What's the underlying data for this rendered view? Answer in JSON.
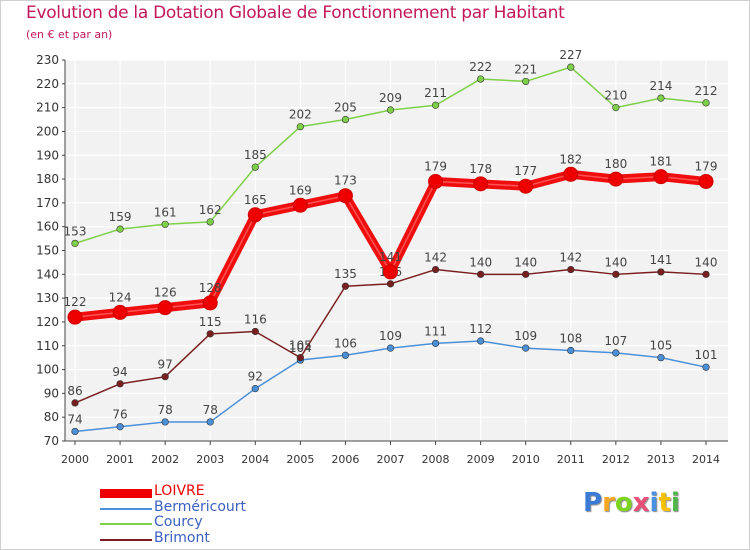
{
  "title": "Evolution de la Dotation Globale de Fonctionnement par Habitant",
  "subtitle": "(en € et par an)",
  "logo": "Proxiti",
  "chart_data": {
    "type": "line",
    "title": "Evolution de la Dotation Globale de Fonctionnement par Habitant",
    "ylabel": "(en € et par an)",
    "xlabel": "",
    "ylim": [
      70,
      230
    ],
    "yticks": [
      70,
      80,
      90,
      100,
      110,
      120,
      130,
      140,
      150,
      160,
      170,
      180,
      190,
      200,
      210,
      220,
      230
    ],
    "categories": [
      "2000",
      "2001",
      "2002",
      "2003",
      "2004",
      "2005",
      "2006",
      "2007",
      "2008",
      "2009",
      "2010",
      "2011",
      "2012",
      "2013",
      "2014"
    ],
    "legend_position": "bottom-left",
    "series": [
      {
        "name": "LOIVRE",
        "color": "#ee0000",
        "emphasis": true,
        "values": [
          122,
          124,
          126,
          128,
          165,
          169,
          173,
          141,
          179,
          178,
          177,
          182,
          180,
          181,
          179
        ]
      },
      {
        "name": "Berméricourt",
        "color": "#4a90d9",
        "values": [
          74,
          76,
          78,
          78,
          92,
          104,
          106,
          109,
          111,
          112,
          109,
          108,
          107,
          105,
          101
        ]
      },
      {
        "name": "Courcy",
        "color": "#7ed048",
        "values": [
          153,
          159,
          161,
          162,
          185,
          202,
          205,
          209,
          211,
          222,
          221,
          227,
          210,
          214,
          212
        ]
      },
      {
        "name": "Brimont",
        "color": "#7a1f1f",
        "values": [
          86,
          94,
          97,
          115,
          116,
          105,
          135,
          136,
          142,
          140,
          140,
          142,
          140,
          141,
          140
        ]
      }
    ]
  }
}
